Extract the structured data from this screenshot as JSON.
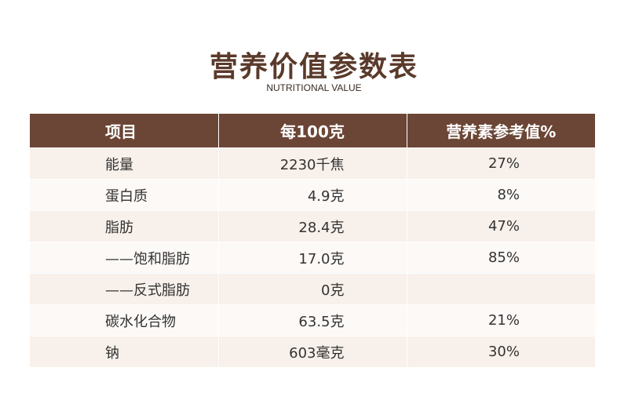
{
  "header": {
    "title": "营养价值参数表",
    "subtitle": "NUTRITIONAL VALUE"
  },
  "table": {
    "columns": [
      "项目",
      "每100克",
      "营养素参考值%"
    ],
    "rows": [
      [
        "能量",
        "2230千焦",
        "27%"
      ],
      [
        "蛋白质",
        "4.9克",
        "8%"
      ],
      [
        "脂肪",
        "28.4克",
        "47%"
      ],
      [
        "——饱和脂肪",
        "17.0克",
        "85%"
      ],
      [
        "——反式脂肪",
        "0克"
      ],
      [
        "碳水化合物",
        "63.5克",
        "21%"
      ],
      [
        "钠",
        "603毫克",
        "30%"
      ]
    ]
  }
}
